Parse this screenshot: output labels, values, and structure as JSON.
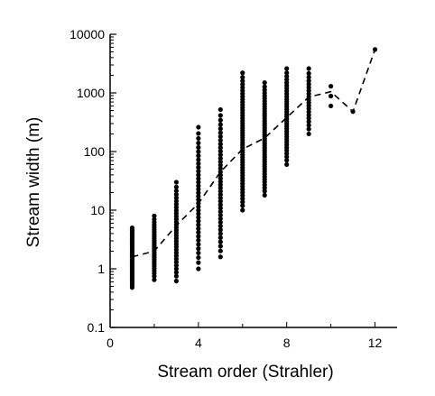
{
  "chart_data": {
    "type": "scatter",
    "xlabel": "Stream order (Strahler)",
    "ylabel": "Stream width (m)",
    "xlim": [
      0,
      13
    ],
    "ylim": [
      0.1,
      10000
    ],
    "y_scale": "log",
    "x_ticks": [
      0,
      4,
      8,
      12
    ],
    "x_tick_labels": [
      "0",
      "4",
      "8",
      "12"
    ],
    "y_ticks": [
      0.1,
      1,
      10,
      100,
      1000,
      10000
    ],
    "y_tick_labels": [
      "0.1",
      "1",
      "10",
      "100",
      "1000",
      "10000"
    ],
    "grid": false,
    "legend": "none",
    "colors": {
      "points": "#000000",
      "line": "#000000"
    },
    "series": [
      {
        "type": "scatter",
        "points": [
          {
            "x": 1,
            "ymin": 0.48,
            "ymax": 5.0,
            "n": 40
          },
          {
            "x": 2,
            "ymin": 0.65,
            "ymax": 8.0,
            "n": 28
          },
          {
            "x": 3,
            "ymin": 0.62,
            "ymax": 30,
            "n": 32
          },
          {
            "x": 4,
            "ymin": 1.0,
            "ymax": 260,
            "n": 36
          },
          {
            "x": 5,
            "ymin": 1.6,
            "ymax": 520,
            "n": 40
          },
          {
            "x": 6,
            "ymin": 10,
            "ymax": 2200,
            "n": 50
          },
          {
            "x": 7,
            "ymin": 18,
            "ymax": 1500,
            "n": 45
          },
          {
            "x": 8,
            "ymin": 60,
            "ymax": 2600,
            "n": 35
          },
          {
            "x": 9,
            "ymin": 200,
            "ymax": 2600,
            "n": 20
          },
          {
            "x": 10,
            "ymin": 600,
            "ymax": 1300,
            "n": 3
          },
          {
            "x": 11,
            "ymin": 480,
            "ymax": 480,
            "n": 1
          },
          {
            "x": 12,
            "ymin": 5500,
            "ymax": 5500,
            "n": 1
          }
        ]
      },
      {
        "type": "line",
        "style": "dashed",
        "x": [
          1,
          2,
          3,
          4,
          5,
          6,
          7,
          8,
          9,
          10,
          11,
          12
        ],
        "y": [
          1.6,
          2.0,
          5.5,
          13,
          45,
          110,
          170,
          380,
          850,
          1050,
          480,
          5500
        ]
      }
    ]
  }
}
